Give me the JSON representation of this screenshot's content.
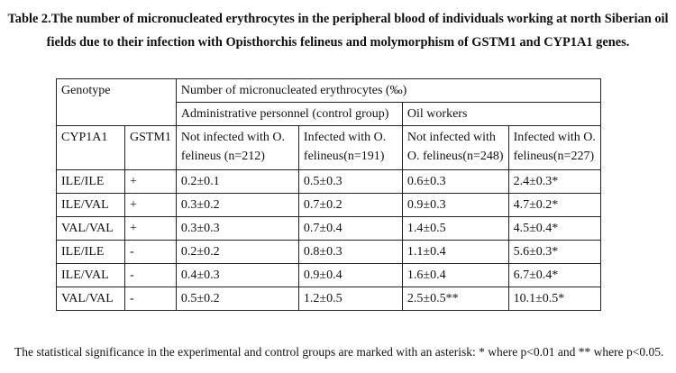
{
  "caption": {
    "line1": "Table 2.The number of micronucleated erythrocytes in the peripheral blood of individuals working at north Siberian oil",
    "line2": "fields due to their infection with Opisthorchis felineus and molymorphism of GSTM1 and CYP1A1 genes."
  },
  "table": {
    "genotype_header": "Genotype",
    "group_header": "Number of micronucleated erythrocytes (‰)",
    "admin_header": "Administrative personnel (control group)",
    "oil_header": "Oil workers",
    "col_cyp": "CYP1A1",
    "col_gstm": "GSTM1",
    "col_admin_not_1": "Not infected with O.",
    "col_admin_not_2": "felineus (n=212)",
    "col_admin_inf_1": "Infected with O.",
    "col_admin_inf_2": "felineus(n=191)",
    "col_oil_not_1": "Not infected with",
    "col_oil_not_2": "O. felineus(n=248)",
    "col_oil_inf_1": "Infected with O.",
    "col_oil_inf_2": "felineus(n=227)",
    "rows": [
      {
        "cyp": "ILE/ILE",
        "gstm": "+",
        "admin_not": "0.2±0.1",
        "admin_inf": "0.5±0.3",
        "oil_not": "0.6±0.3",
        "oil_inf": "2.4±0.3*"
      },
      {
        "cyp": "ILE/VAL",
        "gstm": "+",
        "admin_not": "0.3±0.2",
        "admin_inf": "0.7±0.2",
        "oil_not": "0.9±0.3",
        "oil_inf": "4.7±0.2*"
      },
      {
        "cyp": "VAL/VAL",
        "gstm": "+",
        "admin_not": "0.3±0.3",
        "admin_inf": "0.7±0.4",
        "oil_not": "1.4±0.5",
        "oil_inf": "4.5±0.4*"
      },
      {
        "cyp": "ILE/ILE",
        "gstm": "-",
        "admin_not": "0.2±0.2",
        "admin_inf": "0.8±0.3",
        "oil_not": "1.1±0.4",
        "oil_inf": "5.6±0.3*"
      },
      {
        "cyp": "ILE/VAL",
        "gstm": "-",
        "admin_not": "0.4±0.3",
        "admin_inf": "0.9±0.4",
        "oil_not": "1.6±0.4",
        "oil_inf": "6.7±0.4*"
      },
      {
        "cyp": "VAL/VAL",
        "gstm": "-",
        "admin_not": "0.5±0.2",
        "admin_inf": "1.2±0.5",
        "oil_not": "2.5±0.5**",
        "oil_inf": "10.1±0.5*"
      }
    ]
  },
  "footnote": "The statistical significance in the experimental and control groups are marked with an asterisk: * where p<0.01 and ** where p<0.05."
}
